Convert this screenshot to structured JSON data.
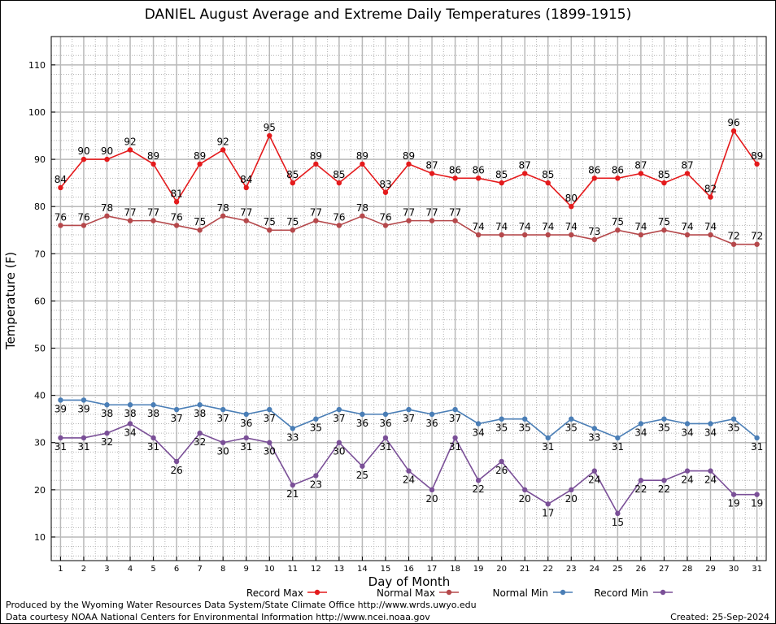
{
  "chart_data": {
    "type": "line",
    "title": "DANIEL August Average and Extreme Daily Temperatures (1899-1915)",
    "xlabel": "Day of Month",
    "ylabel": "Temperature (F)",
    "x": [
      1,
      2,
      3,
      4,
      5,
      6,
      7,
      8,
      9,
      10,
      11,
      12,
      13,
      14,
      15,
      16,
      17,
      18,
      19,
      20,
      21,
      22,
      23,
      24,
      25,
      26,
      27,
      28,
      29,
      30,
      31
    ],
    "xlim": [
      0.6,
      31.4
    ],
    "ylim": [
      5,
      116
    ],
    "yticks": [
      10,
      20,
      30,
      40,
      50,
      60,
      70,
      80,
      90,
      100,
      110
    ],
    "grid": true,
    "legend_position": "bottom",
    "series": [
      {
        "name": "Record Max",
        "color": "#e41a1c",
        "values": [
          84,
          90,
          90,
          92,
          89,
          81,
          89,
          92,
          84,
          95,
          85,
          89,
          85,
          89,
          83,
          89,
          87,
          86,
          86,
          85,
          87,
          85,
          80,
          86,
          86,
          87,
          85,
          87,
          82,
          96,
          89
        ]
      },
      {
        "name": "Normal Max",
        "color": "#b5484b",
        "values": [
          76,
          76,
          78,
          77,
          77,
          76,
          75,
          78,
          77,
          75,
          75,
          77,
          76,
          78,
          76,
          77,
          77,
          77,
          74,
          74,
          74,
          74,
          74,
          73,
          75,
          74,
          75,
          74,
          74,
          72,
          72
        ]
      },
      {
        "name": "Normal Min",
        "color": "#4a7eb6",
        "values": [
          39,
          39,
          38,
          38,
          38,
          37,
          38,
          37,
          36,
          37,
          33,
          35,
          37,
          36,
          36,
          37,
          36,
          37,
          34,
          35,
          35,
          31,
          35,
          33,
          31,
          34,
          35,
          34,
          34,
          35,
          31
        ]
      },
      {
        "name": "Record Min",
        "color": "#7a4f97",
        "values": [
          31,
          31,
          32,
          34,
          31,
          26,
          32,
          30,
          31,
          30,
          21,
          23,
          30,
          25,
          31,
          24,
          20,
          31,
          22,
          26,
          20,
          17,
          20,
          24,
          15,
          22,
          22,
          24,
          24,
          19,
          19
        ]
      }
    ]
  },
  "footer": {
    "credit_line1": "Produced by the Wyoming Water Resources Data System/State Climate Office http://www.wrds.uwyo.edu",
    "credit_line2": "Data courtesy NOAA National Centers for Environmental Information http://www.ncei.noaa.gov",
    "created_label": "Created:",
    "created_date": "25-Sep-2024"
  }
}
